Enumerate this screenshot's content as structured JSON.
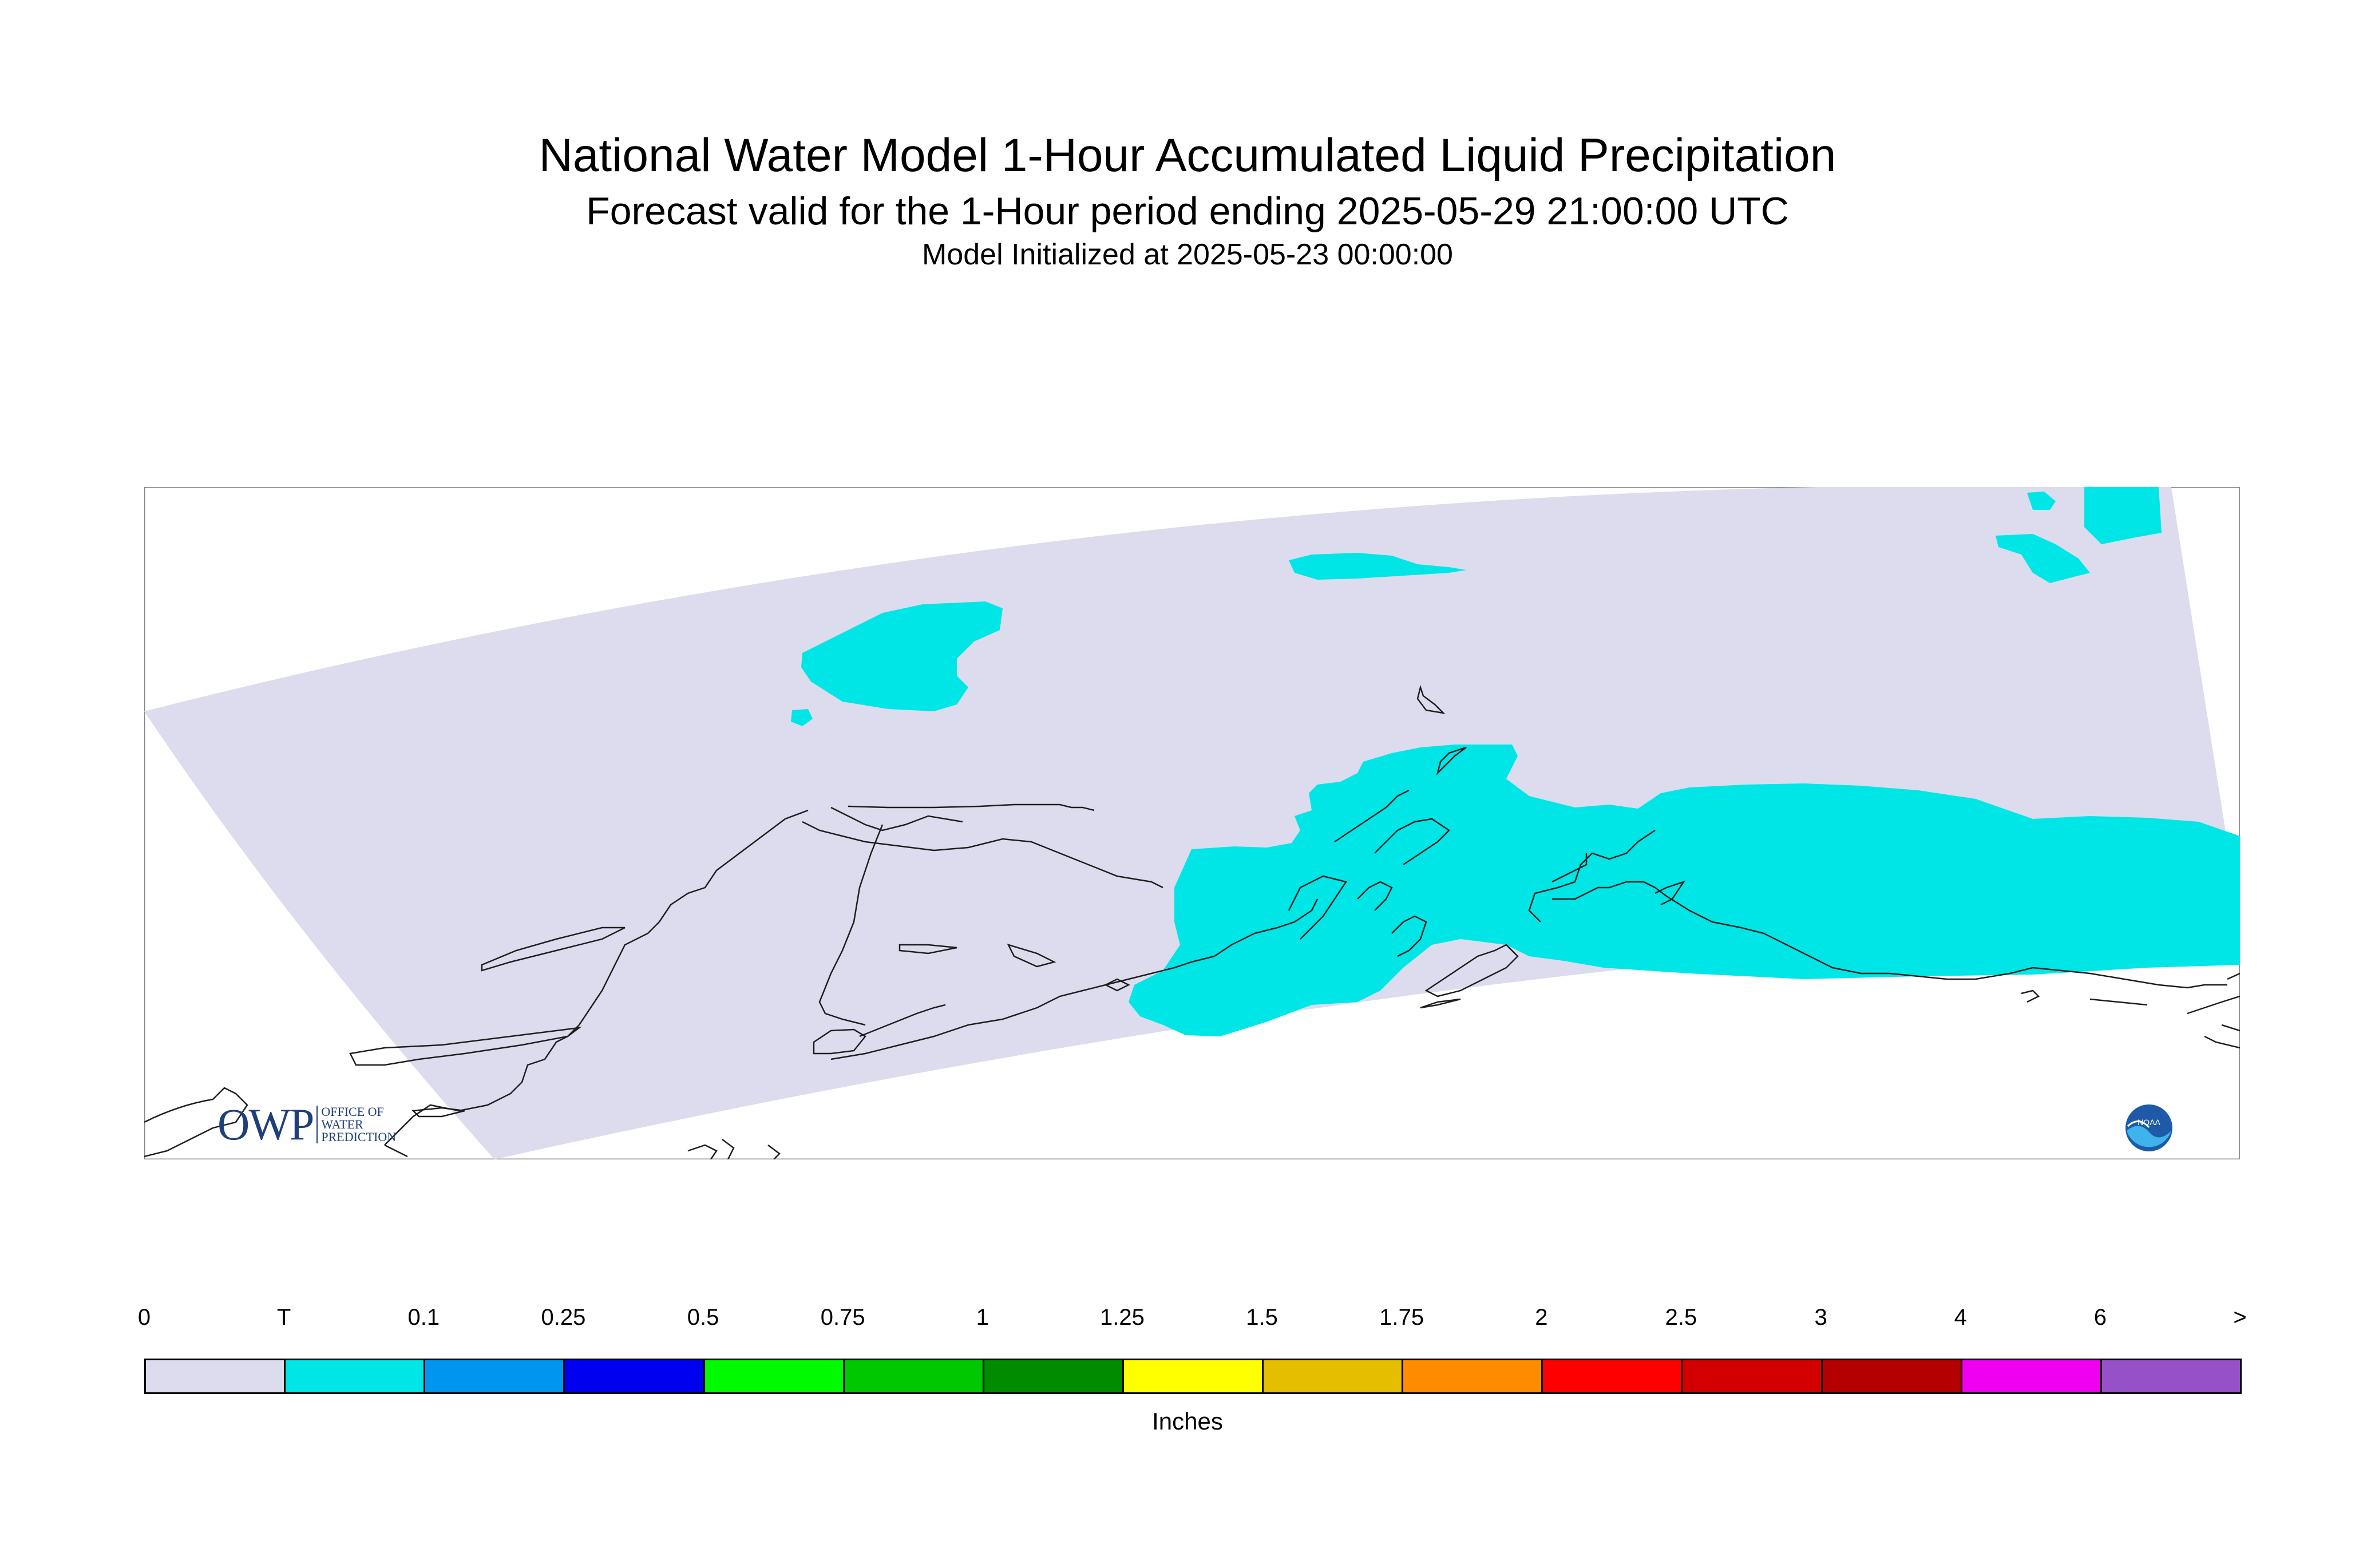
{
  "title": "National Water Model 1-Hour Accumulated Liquid Precipitation",
  "subtitle": "Forecast valid for the 1-Hour period ending 2025-05-29 21:00:00 UTC",
  "init_line": "Model Initialized at 2025-05-23 00:00:00",
  "map": {
    "region": "Alaska",
    "domain_fill": "#dcdcee",
    "precip_fill": "#00e6e6",
    "precip_class": "T"
  },
  "legend": {
    "units": "Inches",
    "labels": [
      "0",
      "T",
      "0.1",
      "0.25",
      "0.5",
      "0.75",
      "1",
      "1.25",
      "1.5",
      "1.75",
      "2",
      "2.5",
      "3",
      "4",
      "6",
      ">"
    ],
    "colors": [
      "#dcdcee",
      "#00e6e6",
      "#0096f0",
      "#0000f0",
      "#00fa00",
      "#00c800",
      "#008c00",
      "#ffff00",
      "#e6be00",
      "#ff8c00",
      "#ff0000",
      "#d20000",
      "#b40000",
      "#f000f0",
      "#9650c8"
    ]
  },
  "logos": {
    "owp_text": "OWP",
    "owp_sub": [
      "OFFICE OF",
      "WATER",
      "PREDICTION"
    ],
    "noaa_text": "NOAA",
    "noaa_icon": "noaa-logo-icon"
  }
}
